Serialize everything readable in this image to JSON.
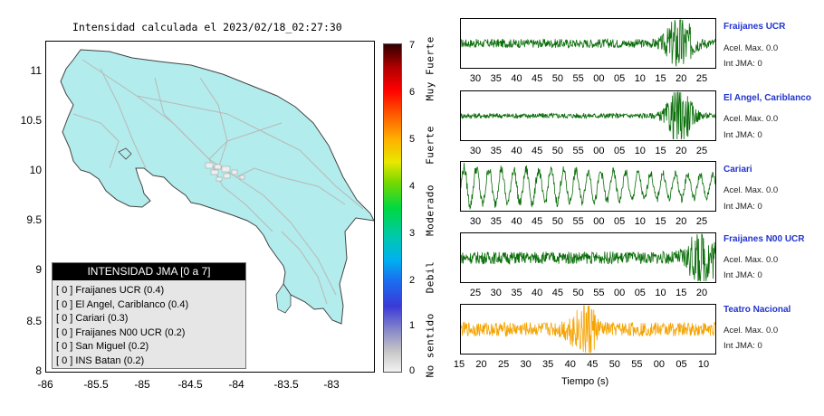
{
  "map": {
    "title": "Intensidad calculada el 2023/02/18_02:27:30",
    "y_ticks": [
      "11",
      "10.5",
      "10",
      "9.5",
      "9",
      "8.5",
      "8"
    ],
    "x_ticks": [
      "-86",
      "-85.5",
      "-85",
      "-84.5",
      "-84",
      "-83.5",
      "-83"
    ]
  },
  "colorbar": {
    "ticks": [
      "0",
      "1",
      "2",
      "3",
      "4",
      "5",
      "6",
      "7"
    ],
    "labels": [
      "No sentido",
      "Debil",
      "Moderado",
      "Fuerte",
      "Muy Fuerte"
    ]
  },
  "legend": {
    "title": "INTENSIDAD JMA [0 a 7]",
    "items": [
      "[ 0 ]  Fraijanes UCR (0.4)",
      "[ 0 ]  El Angel, Cariblanco (0.4)",
      "[ 0 ]  Cariari (0.3)",
      "[ 0 ]  Fraijanes N00 UCR (0.2)",
      "[ 0 ]  San Miguel (0.2)",
      "[ 0 ]  INS Batan (0.2)"
    ]
  },
  "stations": [
    {
      "name": "Fraijanes UCR",
      "accel": "Acel. Max. 0.0",
      "int": "Int JMA: 0",
      "x_ticks": [
        "30",
        "35",
        "40",
        "45",
        "50",
        "55",
        "00",
        "05",
        "10",
        "15",
        "20",
        "25"
      ],
      "color": "#0a6e0a"
    },
    {
      "name": "El Angel, Cariblanco",
      "accel": "Acel. Max. 0.0",
      "int": "Int JMA: 0",
      "x_ticks": [
        "30",
        "35",
        "40",
        "45",
        "50",
        "55",
        "00",
        "05",
        "10",
        "15",
        "20",
        "25"
      ],
      "color": "#0a6e0a"
    },
    {
      "name": "Cariari",
      "accel": "Acel. Max. 0.0",
      "int": "Int JMA: 0",
      "x_ticks": [
        "30",
        "35",
        "40",
        "45",
        "50",
        "55",
        "00",
        "05",
        "10",
        "15",
        "20",
        "25"
      ],
      "color": "#0a6e0a"
    },
    {
      "name": "Fraijanes N00 UCR",
      "accel": "Acel. Max. 0.0",
      "int": "Int JMA: 0",
      "x_ticks": [
        "25",
        "30",
        "35",
        "40",
        "45",
        "50",
        "55",
        "00",
        "05",
        "10",
        "15",
        "20"
      ],
      "color": "#0a6e0a"
    },
    {
      "name": "Teatro Nacional",
      "accel": "Acel. Max. 0.0",
      "int": "Int JMA: 0",
      "x_ticks": [
        "15",
        "20",
        "25",
        "30",
        "35",
        "40",
        "45",
        "50",
        "55",
        "00",
        "05",
        "10"
      ],
      "color": "#f5a300"
    }
  ],
  "time_axis_label": "Tiempo (s)"
}
